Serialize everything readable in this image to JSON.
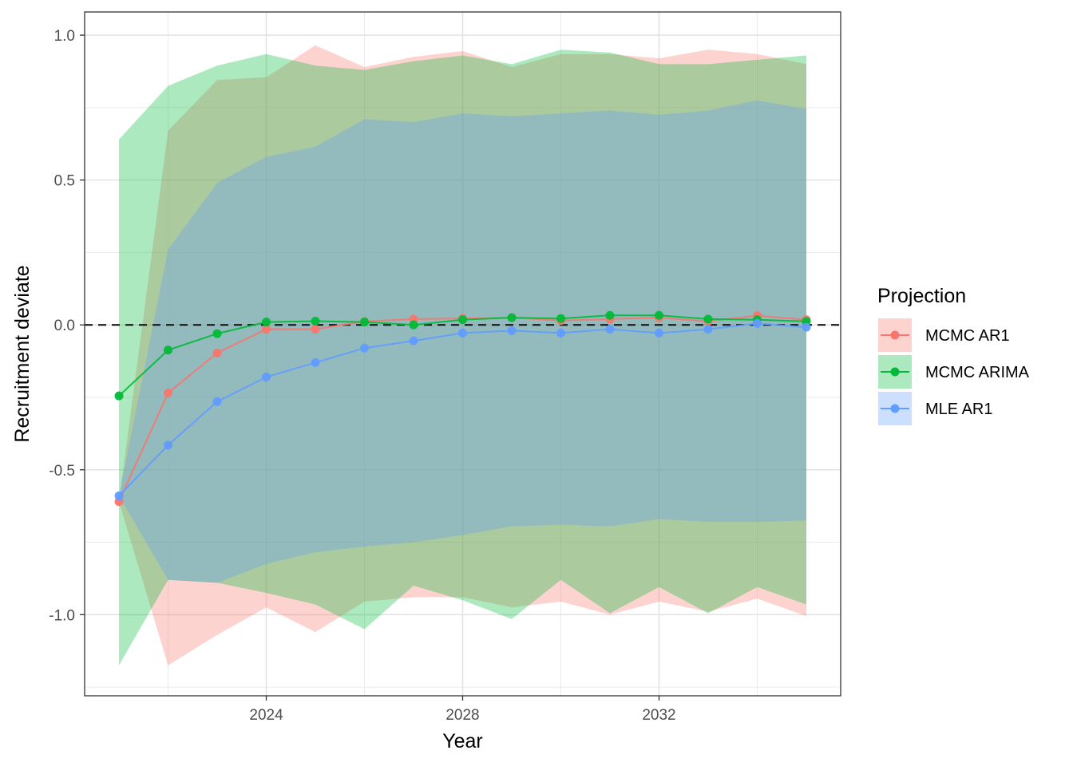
{
  "chart_data": {
    "type": "line",
    "xlabel": "Year",
    "ylabel": "Recruitment deviate",
    "xlim": [
      2020.3,
      2035.7
    ],
    "ylim": [
      -1.28,
      1.08
    ],
    "x_ticks": [
      2024,
      2028,
      2032
    ],
    "y_ticks": [
      1.0,
      0.5,
      0.0,
      -0.5,
      -1.0
    ],
    "y_tick_labels": [
      "1.0",
      "0.5",
      "0.0",
      "-0.5",
      "-1.0"
    ],
    "reference_line_y": 0,
    "legend": {
      "title": "Projection",
      "position": "right"
    },
    "x": [
      2021,
      2022,
      2023,
      2024,
      2025,
      2026,
      2027,
      2028,
      2029,
      2030,
      2031,
      2032,
      2033,
      2034,
      2035
    ],
    "series": [
      {
        "name": "MCMC AR1",
        "color": "#F8766D",
        "values": [
          -0.61,
          -0.235,
          -0.097,
          -0.015,
          -0.015,
          0.012,
          0.02,
          0.022,
          0.025,
          0.015,
          0.02,
          0.025,
          0.012,
          0.032,
          0.018
        ],
        "upper": [
          -0.61,
          0.67,
          0.845,
          0.855,
          0.965,
          0.89,
          0.925,
          0.945,
          0.89,
          0.935,
          0.935,
          0.92,
          0.95,
          0.935,
          0.9
        ],
        "lower": [
          -0.61,
          -1.175,
          -1.07,
          -0.975,
          -1.06,
          -0.955,
          -0.94,
          -0.94,
          -0.975,
          -0.955,
          -1.0,
          -0.955,
          -0.99,
          -0.945,
          -1.005
        ]
      },
      {
        "name": "MCMC ARIMA",
        "color": "#00BA38",
        "values": [
          -0.245,
          -0.087,
          -0.03,
          0.01,
          0.013,
          0.01,
          0.0,
          0.018,
          0.025,
          0.022,
          0.033,
          0.033,
          0.02,
          0.018,
          0.012
        ],
        "upper": [
          0.64,
          0.825,
          0.895,
          0.935,
          0.895,
          0.88,
          0.91,
          0.93,
          0.9,
          0.95,
          0.94,
          0.9,
          0.9,
          0.915,
          0.93
        ],
        "lower": [
          -1.175,
          -0.88,
          -0.89,
          -0.925,
          -0.965,
          -1.05,
          -0.9,
          -0.95,
          -1.015,
          -0.88,
          -0.995,
          -0.905,
          -0.995,
          -0.905,
          -0.965
        ]
      },
      {
        "name": "MLE AR1",
        "color": "#619CFF",
        "values": [
          -0.59,
          -0.415,
          -0.265,
          -0.18,
          -0.13,
          -0.08,
          -0.055,
          -0.028,
          -0.02,
          -0.028,
          -0.015,
          -0.028,
          -0.015,
          0.005,
          -0.008
        ],
        "upper": [
          -0.59,
          0.26,
          0.49,
          0.58,
          0.615,
          0.71,
          0.7,
          0.73,
          0.72,
          0.73,
          0.74,
          0.725,
          0.74,
          0.775,
          0.745
        ],
        "lower": [
          -0.59,
          -0.88,
          -0.89,
          -0.825,
          -0.785,
          -0.765,
          -0.75,
          -0.725,
          -0.695,
          -0.69,
          -0.695,
          -0.67,
          -0.68,
          -0.68,
          -0.675
        ]
      }
    ]
  }
}
